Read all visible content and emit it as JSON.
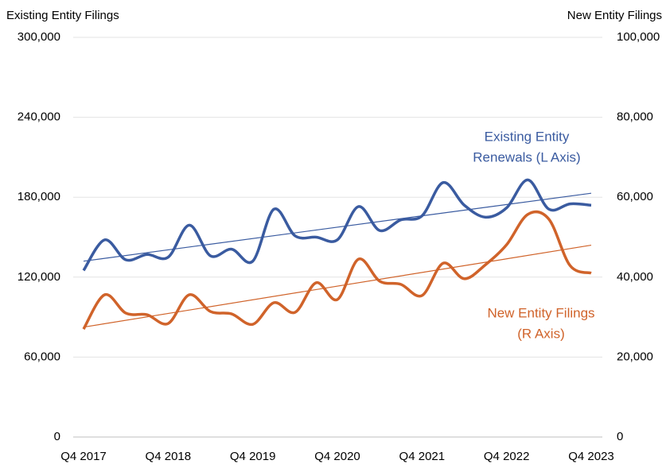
{
  "chart_data": {
    "type": "line",
    "y_axis_title": "Existing Entity Filings",
    "y2_axis_title": "New Entity Filings",
    "categories": [
      "Q4 2017",
      null,
      null,
      null,
      "Q4 2018",
      null,
      null,
      null,
      "Q4 2019",
      null,
      null,
      null,
      "Q4 2020",
      null,
      null,
      null,
      "Q4 2021",
      null,
      null,
      null,
      "Q4 2022",
      null,
      null,
      null,
      "Q4 2023"
    ],
    "ylim": [
      0,
      300000
    ],
    "yticks": [
      0,
      {
        "value": 60000,
        "label": "60,000"
      },
      {
        "value": 120000,
        "label": "120,000"
      },
      {
        "value": 180000,
        "label": "180,000"
      },
      {
        "value": 240000,
        "label": "240,000"
      },
      {
        "value": 300000,
        "label": "300,000"
      }
    ],
    "y2lim": [
      0,
      100000
    ],
    "y2ticks": [
      0,
      {
        "value": 20000,
        "label": "20,000"
      },
      {
        "value": 40000,
        "label": "40,000"
      },
      {
        "value": 60000,
        "label": "60,000"
      },
      {
        "value": 80000,
        "label": "80,000"
      },
      {
        "value": 100000,
        "label": "100,000"
      }
    ],
    "grid": true,
    "smooth": true,
    "series": [
      {
        "color": "#3a5ba0",
        "axis": "y",
        "values": [
          125000,
          148000,
          133000,
          137000,
          135000,
          159000,
          136000,
          141000,
          132000,
          171000,
          151000,
          150000,
          148000,
          173000,
          155000,
          163000,
          166000,
          191000,
          174000,
          165000,
          172000,
          193000,
          171000,
          175000,
          174000
        ],
        "trend": [
          132000,
          183000
        ]
      },
      {
        "color": "#d0632a",
        "axis": "y2",
        "values": [
          27000,
          35600,
          31000,
          30600,
          28400,
          35600,
          31400,
          30800,
          28200,
          33600,
          31200,
          38600,
          34400,
          44500,
          39000,
          38200,
          35400,
          43500,
          39600,
          43100,
          48100,
          55700,
          54500,
          42900,
          41000
        ],
        "trend": [
          27500,
          48000
        ]
      }
    ],
    "annotations": [
      {
        "lines": [
          "Existing Entity",
          "Renewals (L Axis)"
        ],
        "color": "#3a5ba0"
      },
      {
        "lines": [
          "New Entity Filings",
          "(R Axis)"
        ],
        "color": "#d0632a"
      }
    ]
  }
}
